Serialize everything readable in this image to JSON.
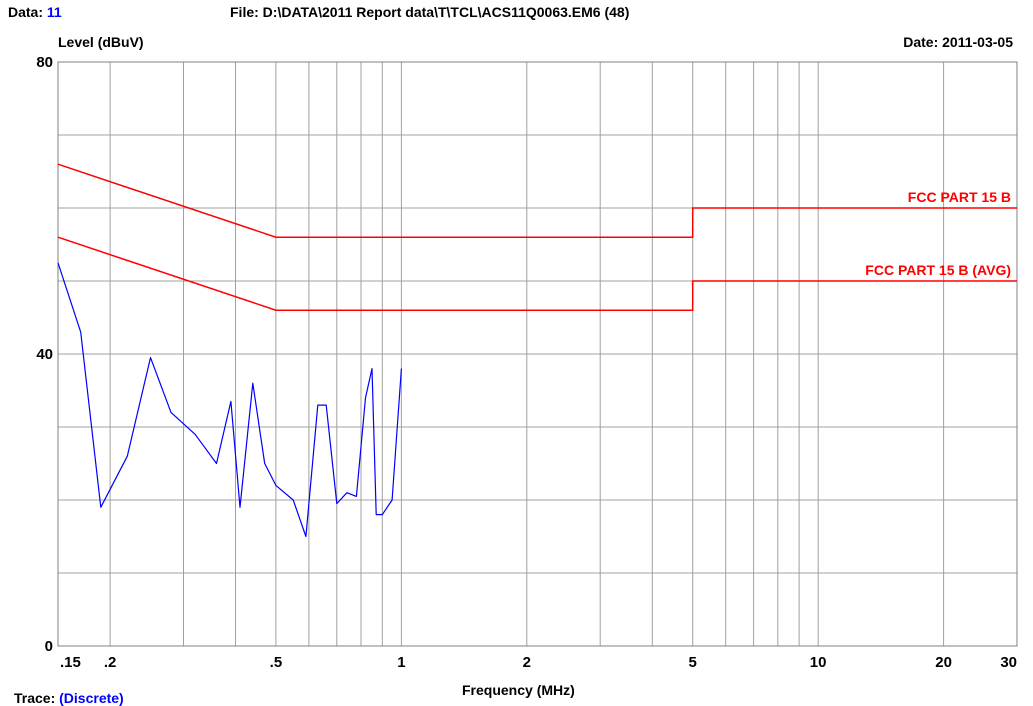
{
  "header": {
    "data_label": "Data:",
    "data_value": "11",
    "file_text": "File: D:\\DATA\\2011 Report data\\T\\TCL\\ACS11Q0063.EM6  (48)",
    "date_text": "Date: 2011-03-05"
  },
  "footer": {
    "trace_label": "Trace:",
    "trace_value": "(Discrete)"
  },
  "colors": {
    "trace": "#0000ff",
    "limit": "#ff0000",
    "grid": "#a0a0a0"
  },
  "chart_data": {
    "type": "line",
    "ylabel": "Level (dBuV)",
    "xlabel": "Frequency (MHz)",
    "x_scale": "log",
    "xlim": [
      0.15,
      30
    ],
    "ylim": [
      0,
      80
    ],
    "y_ticks": [
      "0",
      "40",
      "80"
    ],
    "x_ticks": [
      {
        "v": 0.15,
        "label": ".15"
      },
      {
        "v": 0.2,
        "label": ".2"
      },
      {
        "v": 0.5,
        "label": ".5"
      },
      {
        "v": 1,
        "label": "1"
      },
      {
        "v": 2,
        "label": "2"
      },
      {
        "v": 5,
        "label": "5"
      },
      {
        "v": 10,
        "label": "10"
      },
      {
        "v": 20,
        "label": "20"
      },
      {
        "v": 30,
        "label": "30"
      }
    ],
    "grid": true,
    "limits": [
      {
        "name": "FCC PART 15 B",
        "points": [
          [
            0.15,
            66
          ],
          [
            0.5,
            56
          ],
          [
            5,
            56
          ],
          [
            5,
            60
          ],
          [
            30,
            60
          ]
        ]
      },
      {
        "name": "FCC PART 15 B (AVG)",
        "points": [
          [
            0.15,
            56
          ],
          [
            0.5,
            46
          ],
          [
            5,
            46
          ],
          [
            5,
            50
          ],
          [
            30,
            50
          ]
        ]
      }
    ],
    "series": [
      {
        "points": [
          [
            0.15,
            52.5
          ],
          [
            0.17,
            43
          ],
          [
            0.19,
            19
          ],
          [
            0.22,
            26
          ],
          [
            0.25,
            39.5
          ],
          [
            0.28,
            32
          ],
          [
            0.32,
            29
          ],
          [
            0.36,
            25
          ],
          [
            0.39,
            33.5
          ],
          [
            0.41,
            19
          ],
          [
            0.44,
            36
          ],
          [
            0.47,
            25
          ],
          [
            0.5,
            22
          ],
          [
            0.55,
            20
          ],
          [
            0.59,
            15
          ],
          [
            0.63,
            33
          ],
          [
            0.66,
            33
          ],
          [
            0.7,
            19.5
          ],
          [
            0.74,
            21
          ],
          [
            0.78,
            20.5
          ],
          [
            0.82,
            34
          ],
          [
            0.85,
            38
          ],
          [
            0.87,
            18
          ],
          [
            0.9,
            18
          ],
          [
            0.95,
            20
          ],
          [
            1.0,
            38
          ]
        ]
      }
    ]
  }
}
